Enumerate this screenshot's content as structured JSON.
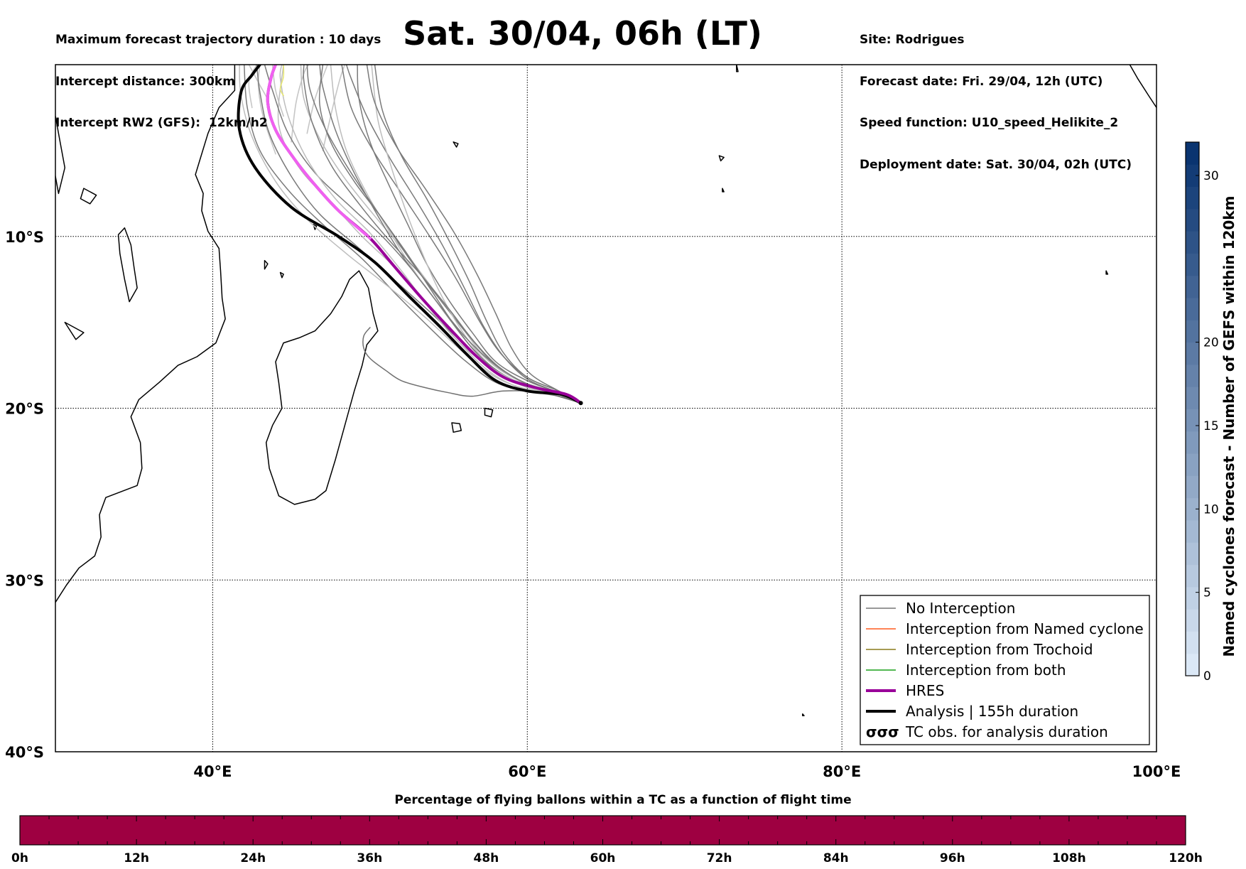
{
  "header": {
    "left_lines": [
      "Maximum forecast trajectory duration : 10 days",
      "Intercept distance: 300km",
      "Intercept RW2 (GFS):  12km/h2"
    ],
    "title": "Sat. 30/04, 06h (LT)",
    "right_lines": [
      "Site: Rodrigues",
      "Forecast date: Fri. 29/04, 12h (UTC)",
      "Speed function: U10_speed_Helikite_2",
      "Deployment date: Sat. 30/04, 02h (UTC)"
    ]
  },
  "map": {
    "extent": {
      "lon_min": 30,
      "lon_max": 100,
      "lat_min": -40,
      "lat_max": 0
    },
    "lat_grid": [
      -10,
      -20,
      -30
    ],
    "lon_grid": [
      40,
      60,
      80
    ],
    "lat_labels": [
      {
        "lat": -10,
        "text": "10°S"
      },
      {
        "lat": -20,
        "text": "20°S"
      },
      {
        "lat": -30,
        "text": "30°S"
      },
      {
        "lat": -40,
        "text": "40°S"
      }
    ],
    "lon_labels": [
      {
        "lon": 40,
        "text": "40°E"
      },
      {
        "lon": 60,
        "text": "60°E"
      },
      {
        "lon": 80,
        "text": "80°E"
      },
      {
        "lon": 100,
        "text": "100°E"
      }
    ],
    "site": {
      "lon": 63.4,
      "lat": -19.7
    },
    "hres_track": [
      [
        63.4,
        -19.7
      ],
      [
        62.5,
        -19.2
      ],
      [
        60.5,
        -18.8
      ],
      [
        58.5,
        -18.2
      ],
      [
        56.8,
        -17.0
      ],
      [
        55.0,
        -15.3
      ],
      [
        53.2,
        -13.5
      ],
      [
        51.5,
        -11.7
      ],
      [
        50.0,
        -10.1
      ],
      [
        48.0,
        -8.5
      ],
      [
        46.5,
        -7.0
      ],
      [
        45.2,
        -5.5
      ],
      [
        44.0,
        -3.8
      ],
      [
        43.5,
        -2.2
      ],
      [
        43.7,
        -0.8
      ],
      [
        44.0,
        0.0
      ]
    ],
    "analysis_track": [
      [
        63.4,
        -19.7
      ],
      [
        62.2,
        -19.2
      ],
      [
        60.0,
        -19.0
      ],
      [
        58.0,
        -18.4
      ],
      [
        56.3,
        -17.0
      ],
      [
        54.5,
        -15.3
      ],
      [
        52.5,
        -13.5
      ],
      [
        50.3,
        -11.5
      ],
      [
        48.0,
        -10.0
      ],
      [
        45.0,
        -8.3
      ],
      [
        42.7,
        -6.0
      ],
      [
        41.7,
        -3.8
      ],
      [
        41.8,
        -1.6
      ],
      [
        42.5,
        -0.6
      ],
      [
        43.0,
        0.0
      ]
    ],
    "gray_tracks": [
      [
        [
          63.4,
          -19.7
        ],
        [
          62,
          -19.1
        ],
        [
          59.5,
          -18.4
        ],
        [
          57.5,
          -17.2
        ],
        [
          56,
          -15.5
        ],
        [
          54.2,
          -13.3
        ],
        [
          52.3,
          -11.0
        ],
        [
          50.2,
          -8.7
        ],
        [
          48.3,
          -6.5
        ],
        [
          46.8,
          -4.3
        ],
        [
          45.8,
          -2.0
        ],
        [
          45.6,
          0
        ]
      ],
      [
        [
          63.4,
          -19.7
        ],
        [
          62,
          -19.0
        ],
        [
          60,
          -18.2
        ],
        [
          58.3,
          -16.8
        ],
        [
          57,
          -15.0
        ],
        [
          55.5,
          -12.5
        ],
        [
          53.8,
          -10.0
        ],
        [
          52,
          -7.5
        ],
        [
          50.2,
          -5.0
        ],
        [
          48.8,
          -2.5
        ],
        [
          48.2,
          0
        ]
      ],
      [
        [
          63.4,
          -19.7
        ],
        [
          62,
          -19.2
        ],
        [
          59.8,
          -18.5
        ],
        [
          58,
          -17.5
        ],
        [
          56.3,
          -15.8
        ],
        [
          54.3,
          -13.5
        ],
        [
          52.5,
          -11.3
        ],
        [
          50.8,
          -9.0
        ],
        [
          49.0,
          -6.8
        ],
        [
          47.5,
          -4.5
        ],
        [
          46.8,
          -2.3
        ],
        [
          47,
          0
        ]
      ],
      [
        [
          63.4,
          -19.7
        ],
        [
          62,
          -19.3
        ],
        [
          59.5,
          -18.8
        ],
        [
          57.5,
          -17.8
        ],
        [
          55.5,
          -16.0
        ],
        [
          53.7,
          -14.0
        ],
        [
          51.8,
          -12.0
        ],
        [
          49.5,
          -10.0
        ],
        [
          47.5,
          -8.0
        ],
        [
          45.5,
          -6.0
        ],
        [
          44.2,
          -3.5
        ],
        [
          44.5,
          0
        ]
      ],
      [
        [
          63.4,
          -19.7
        ],
        [
          62,
          -19.1
        ],
        [
          60,
          -18.3
        ],
        [
          58.5,
          -17.0
        ],
        [
          57.2,
          -15.2
        ],
        [
          56,
          -13.0
        ],
        [
          54.6,
          -10.5
        ],
        [
          53,
          -8.0
        ],
        [
          51.3,
          -5.5
        ],
        [
          49.8,
          -3.0
        ],
        [
          48.8,
          -0.8
        ],
        [
          48.5,
          0
        ]
      ],
      [
        [
          63.4,
          -19.7
        ],
        [
          62,
          -19.2
        ],
        [
          60,
          -18.7
        ],
        [
          58.2,
          -17.9
        ],
        [
          56.5,
          -16.5
        ],
        [
          54.8,
          -14.5
        ],
        [
          53,
          -12.3
        ],
        [
          51,
          -10.2
        ],
        [
          48.8,
          -8.3
        ],
        [
          46.5,
          -6.3
        ],
        [
          44.8,
          -4.0
        ],
        [
          43.8,
          -1.5
        ],
        [
          43.3,
          0
        ]
      ],
      [
        [
          63.4,
          -19.7
        ],
        [
          62,
          -19.2
        ],
        [
          60,
          -18.6
        ],
        [
          58,
          -17.6
        ],
        [
          56.2,
          -16.0
        ],
        [
          54.4,
          -14.0
        ],
        [
          52.8,
          -12.0
        ],
        [
          51.3,
          -9.8
        ],
        [
          49.8,
          -7.5
        ],
        [
          48.5,
          -5.0
        ],
        [
          47.8,
          -2.5
        ],
        [
          47.5,
          0
        ]
      ],
      [
        [
          63.4,
          -19.7
        ],
        [
          62,
          -19.1
        ],
        [
          60,
          -18.4
        ],
        [
          58,
          -17.3
        ],
        [
          56.5,
          -15.6
        ],
        [
          55,
          -13.7
        ],
        [
          53.6,
          -11.6
        ],
        [
          52.4,
          -9.3
        ],
        [
          51.2,
          -7.0
        ],
        [
          50,
          -4.5
        ],
        [
          49.3,
          -2.0
        ],
        [
          49.2,
          0
        ]
      ],
      [
        [
          63.4,
          -19.7
        ],
        [
          62,
          -19.3
        ],
        [
          60,
          -19.0
        ],
        [
          58,
          -18.5
        ],
        [
          56,
          -17.2
        ],
        [
          54,
          -15.5
        ],
        [
          51.8,
          -13.5
        ],
        [
          49.5,
          -11.3
        ],
        [
          47.0,
          -9.3
        ],
        [
          44.8,
          -7.3
        ],
        [
          43.0,
          -5.0
        ],
        [
          42.2,
          -2.5
        ],
        [
          42.0,
          0
        ]
      ],
      [
        [
          63.4,
          -19.7
        ],
        [
          62,
          -19.2
        ],
        [
          60,
          -18.8
        ],
        [
          58.3,
          -18.0
        ],
        [
          56.8,
          -16.7
        ],
        [
          55.5,
          -15.0
        ],
        [
          54.3,
          -13.0
        ],
        [
          53.2,
          -10.7
        ],
        [
          52.2,
          -8.3
        ],
        [
          51.3,
          -5.8
        ],
        [
          50.5,
          -3.2
        ],
        [
          50.1,
          0
        ]
      ],
      [
        [
          63.4,
          -19.7
        ],
        [
          62,
          -19.1
        ],
        [
          59.7,
          -18.6
        ],
        [
          57.7,
          -17.6
        ],
        [
          55.9,
          -16.2
        ],
        [
          53.7,
          -14.3
        ],
        [
          51.5,
          -12.5
        ],
        [
          49.2,
          -10.6
        ],
        [
          46.8,
          -8.7
        ],
        [
          45.0,
          -6.5
        ],
        [
          43.6,
          -4.0
        ],
        [
          43.0,
          -1.6
        ],
        [
          42.8,
          0
        ]
      ],
      [
        [
          63.4,
          -19.7
        ],
        [
          61.5,
          -19.0
        ],
        [
          59,
          -18.3
        ],
        [
          57,
          -17.0
        ],
        [
          55.4,
          -15.2
        ],
        [
          53.8,
          -13.0
        ],
        [
          52.2,
          -10.8
        ],
        [
          50.5,
          -8.6
        ],
        [
          48.8,
          -6.3
        ],
        [
          47.2,
          -3.8
        ],
        [
          46.2,
          -1.5
        ],
        [
          46.0,
          0
        ]
      ],
      [
        [
          63.4,
          -19.7
        ],
        [
          62,
          -19.2
        ],
        [
          60,
          -18.9
        ],
        [
          58,
          -18.2
        ],
        [
          56,
          -16.8
        ],
        [
          53.5,
          -14.7
        ],
        [
          51,
          -12.8
        ],
        [
          48.5,
          -11.0
        ],
        [
          46,
          -9.0
        ],
        [
          44.0,
          -6.8
        ],
        [
          42.5,
          -4.2
        ],
        [
          41.8,
          -1.8
        ],
        [
          41.7,
          0
        ]
      ],
      [
        [
          63.4,
          -19.7
        ],
        [
          62,
          -19.0
        ],
        [
          60.2,
          -18.0
        ],
        [
          59,
          -16.5
        ],
        [
          58,
          -14.5
        ],
        [
          56.8,
          -12.2
        ],
        [
          55.3,
          -9.7
        ],
        [
          53.5,
          -7.2
        ],
        [
          51.7,
          -4.8
        ],
        [
          50.3,
          -2.2
        ],
        [
          49.8,
          0
        ]
      ],
      [
        [
          63.4,
          -19.7
        ],
        [
          62,
          -19.2
        ],
        [
          60,
          -18.6
        ],
        [
          58,
          -17.5
        ],
        [
          56,
          -15.8
        ],
        [
          54,
          -13.5
        ],
        [
          52.1,
          -11.2
        ],
        [
          50.5,
          -8.8
        ],
        [
          49.0,
          -6.3
        ],
        [
          47.8,
          -3.8
        ],
        [
          47.0,
          -1.3
        ],
        [
          46.8,
          0
        ]
      ],
      [
        [
          63.4,
          -19.7
        ],
        [
          62,
          -19.2
        ],
        [
          60,
          -18.7
        ],
        [
          57.8,
          -17.7
        ],
        [
          55.7,
          -16.2
        ],
        [
          53.8,
          -14.2
        ],
        [
          52.0,
          -12.0
        ],
        [
          50.0,
          -9.8
        ],
        [
          47.8,
          -7.8
        ],
        [
          46.0,
          -5.5
        ],
        [
          44.8,
          -3.0
        ],
        [
          44.3,
          -0.8
        ],
        [
          44.4,
          0
        ]
      ],
      [
        [
          63.4,
          -19.7
        ],
        [
          62,
          -19.0
        ],
        [
          60,
          -18.2
        ],
        [
          58.5,
          -16.8
        ],
        [
          57.4,
          -14.9
        ],
        [
          56.3,
          -12.6
        ],
        [
          55.0,
          -10.2
        ],
        [
          53.6,
          -7.8
        ],
        [
          52.0,
          -5.3
        ],
        [
          50.8,
          -2.7
        ],
        [
          50.3,
          0
        ]
      ],
      [
        [
          63.4,
          -19.7
        ],
        [
          62,
          -19.2
        ],
        [
          60,
          -18.6
        ],
        [
          58.2,
          -17.6
        ],
        [
          56.6,
          -16.1
        ],
        [
          55.0,
          -14.2
        ],
        [
          53.2,
          -12.2
        ],
        [
          51.2,
          -10.2
        ],
        [
          49.3,
          -8.1
        ],
        [
          47.5,
          -5.8
        ],
        [
          46.3,
          -3.3
        ],
        [
          45.8,
          -1.0
        ],
        [
          45.8,
          0
        ]
      ]
    ],
    "grey_light_tracks": [
      [
        [
          43.5,
          -2.0
        ],
        [
          43.0,
          -1.2
        ],
        [
          42.6,
          -0.5
        ],
        [
          42.3,
          0
        ]
      ],
      [
        [
          44.5,
          -3.0
        ],
        [
          44.0,
          -1.5
        ],
        [
          43.8,
          0
        ]
      ],
      [
        [
          45.0,
          -4.5
        ],
        [
          45.3,
          -2.2
        ],
        [
          45.8,
          -0.5
        ],
        [
          46.1,
          0
        ]
      ],
      [
        [
          46.0,
          -4.0
        ],
        [
          46.5,
          -2.0
        ],
        [
          47.3,
          0
        ]
      ],
      [
        [
          42.5,
          -2.5
        ],
        [
          42.3,
          -1.0
        ],
        [
          42.8,
          0
        ]
      ],
      [
        [
          47.0,
          -5.0
        ],
        [
          47.6,
          -2.6
        ],
        [
          48.1,
          -0.8
        ],
        [
          48.4,
          0
        ]
      ],
      [
        [
          44.0,
          -5.2
        ],
        [
          43.2,
          -3.0
        ],
        [
          42.9,
          -1.2
        ],
        [
          43.0,
          0
        ]
      ]
    ],
    "lone_track": [
      [
        63.4,
        -19.7
      ],
      [
        61,
        -19.1
      ],
      [
        58.5,
        -19.0
      ],
      [
        56.5,
        -19.3
      ],
      [
        55,
        -19.1
      ],
      [
        53.5,
        -18.8
      ],
      [
        52,
        -18.4
      ],
      [
        51,
        -17.8
      ],
      [
        50,
        -17.1
      ],
      [
        49.6,
        -16.5
      ],
      [
        49.6,
        -15.8
      ],
      [
        50.0,
        -15.3
      ]
    ],
    "yellow_track": [
      [
        44.5,
        0
      ],
      [
        44.5,
        -0.7
      ],
      [
        44.3,
        -1.4
      ],
      [
        44.5,
        -1.8
      ]
    ],
    "land_color": "#000000",
    "grid_color": "#000000"
  },
  "legend": {
    "items": [
      {
        "label": "No Interception",
        "color": "#777777",
        "style": "thin"
      },
      {
        "label": "Interception from Named cyclone",
        "color": "#ff5a1f",
        "style": "thin"
      },
      {
        "label": "Interception from Trochoid",
        "color": "#8a7a1a",
        "style": "thin"
      },
      {
        "label": "Interception from both",
        "color": "#1aa01a",
        "style": "thin"
      },
      {
        "label": "HRES",
        "color": "#990099",
        "style": "thick"
      },
      {
        "label": "Analysis | 155h duration",
        "color": "#000000",
        "style": "thick"
      },
      {
        "label": "TC obs. for analysis duration",
        "color": "#000000",
        "style": "symbol",
        "symbol": "σσσ"
      }
    ]
  },
  "right_colorbar": {
    "label": "Named cyclones forecast - Number of GEFS within 120km",
    "ticks": [
      {
        "value": 0,
        "text": "0"
      },
      {
        "value": 5,
        "text": "5"
      },
      {
        "value": 10,
        "text": "10"
      },
      {
        "value": 15,
        "text": "15"
      },
      {
        "value": 20,
        "text": "20"
      },
      {
        "value": 30,
        "text": "30"
      }
    ],
    "bands": 24,
    "color_low": "#dbe8f6",
    "color_high": "#0a3470"
  },
  "bottom_colorbar": {
    "title": "Percentage of flying ballons within a TC as a function of flight time",
    "fill_color": "#9e0041",
    "time_labels": [
      "0h",
      "12h",
      "24h",
      "36h",
      "48h",
      "60h",
      "72h",
      "84h",
      "96h",
      "108h",
      "120h"
    ],
    "minor_ticks_per_interval": 4
  }
}
